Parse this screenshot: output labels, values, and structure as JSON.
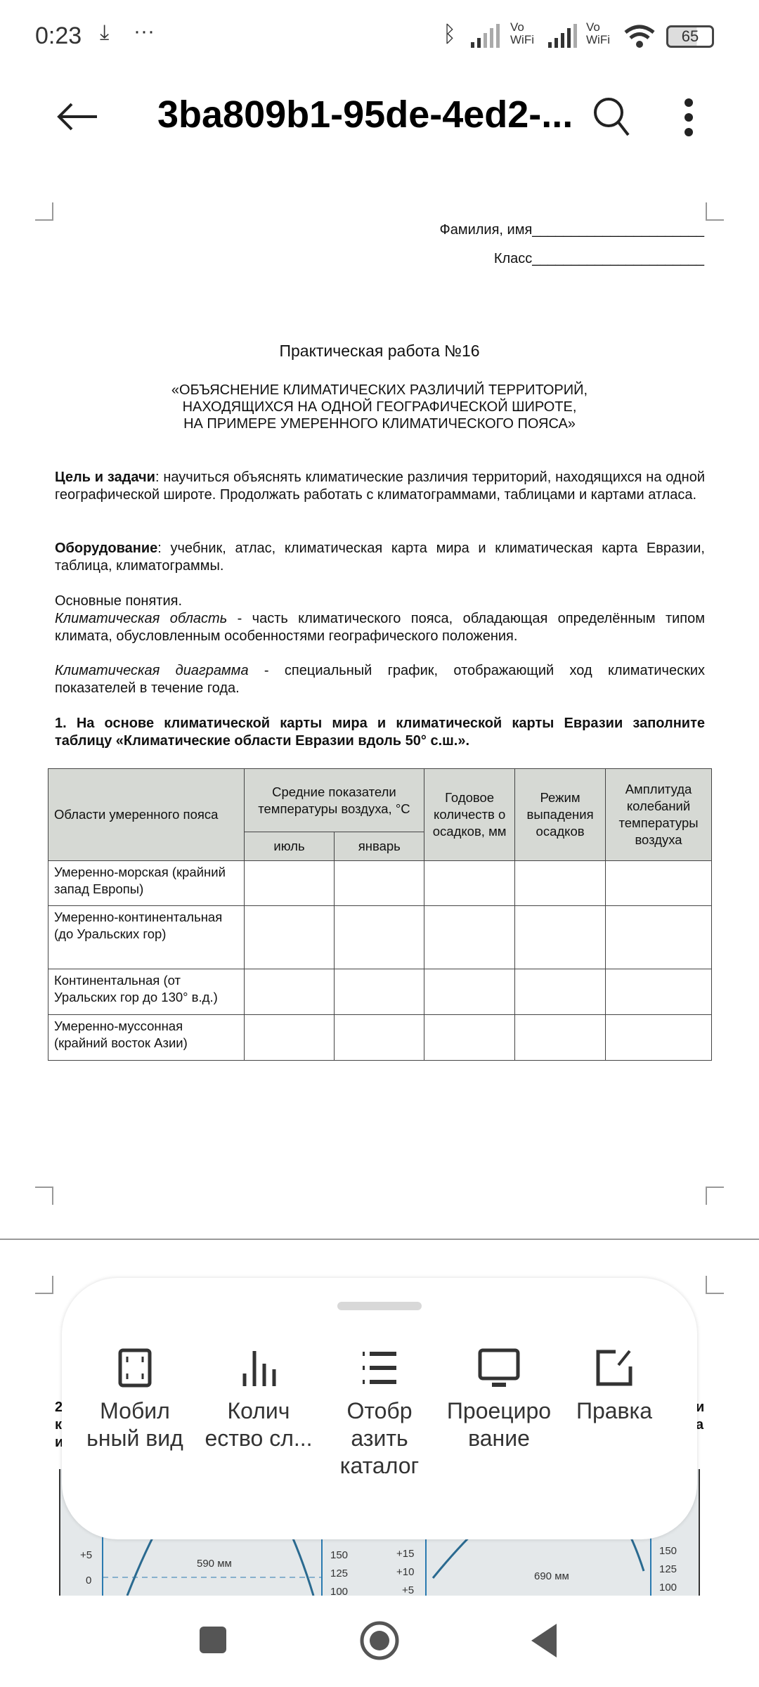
{
  "status": {
    "time": "0:23",
    "battery": "65",
    "wifi_label": "Vo\nWiFi"
  },
  "header": {
    "title": "3ba809b1-95de-4ed2-..."
  },
  "doc": {
    "name_field": "Фамилия, имя______________________",
    "class_field": "Класс______________________",
    "title": "Практическая работа №16",
    "subtitle": [
      "«ОБЪЯСНЕНИЕ КЛИМАТИЧЕСКИХ РАЗЛИЧИЙ ТЕРРИТОРИЙ,",
      "НАХОДЯЩИХСЯ НА ОДНОЙ ГЕОГРАФИЧЕСКОЙ ШИРОТЕ,",
      "НА ПРИМЕРЕ УМЕРЕННОГО КЛИМАТИЧЕСКОГО ПОЯСА»"
    ],
    "goal_label": "Цель и задачи",
    "goal_text": ": научиться объяснять климатические различия территорий, находящихся на одной географической широте. Продолжать работать с климатограммами, таблицами и картами атласа.",
    "equip_label": "Оборудование",
    "equip_text": ": учебник, атлас, климатическая карта мира и климатическая карта Евразии, таблица, климатограммы.",
    "concepts_label": "Основные понятия.",
    "def1_term": "Климатическая область",
    "def1_text": " - часть климатического пояса, обладающая определённым типом климата, обусловленным особенностями географического положения.",
    "def2_term": "Климатическая диаграмма",
    "def2_text": " - специальный график, отображающий ход климатических показателей в течение года.",
    "task1": "1. На основе климатической карты мира и климатической карты Евразии заполните таблицу «Климатические области Евразии вдоль 50° с.ш.».",
    "table": {
      "h_region": "Области умеренного пояса",
      "h_temp": "Средние показатели температуры воздуха, °С",
      "h_july": "июль",
      "h_jan": "январь",
      "h_precip": "Годовое количеств о осадков, мм",
      "h_regime": "Режим выпадения осадков",
      "h_amp": "Амплитуда колебаний температуры воздуха",
      "rows": [
        "Умеренно-морская (крайний запад Европы)",
        "Умеренно-континентальная (до Уральских гор)",
        "Континентальная (от Уральских гор до 130° в.д.)",
        "Умеренно-муссонная (крайний восток Азии)"
      ]
    },
    "page2_left": [
      "2",
      "к",
      "и"
    ],
    "page2_right": [
      "и",
      "а"
    ],
    "chart_labels": {
      "l_p5": "+5",
      "l_0": "0",
      "l_590": "590 мм",
      "l_150": "150",
      "l_125": "125",
      "l_100": "100",
      "r_p15": "+15",
      "r_p10": "+10",
      "r_p5": "+5",
      "r_690": "690 мм",
      "r_150": "150",
      "r_125": "125",
      "r_100": "100"
    }
  },
  "sheet": {
    "items": [
      {
        "label": "Мобил ьный вид",
        "icon": "mobile-view-icon"
      },
      {
        "label": "Колич ество сл...",
        "icon": "bar-chart-icon"
      },
      {
        "label": "Отобр азить каталог",
        "icon": "list-icon"
      },
      {
        "label": "Проециро вание",
        "icon": "monitor-icon"
      },
      {
        "label": "Правка",
        "icon": "edit-icon"
      }
    ]
  }
}
